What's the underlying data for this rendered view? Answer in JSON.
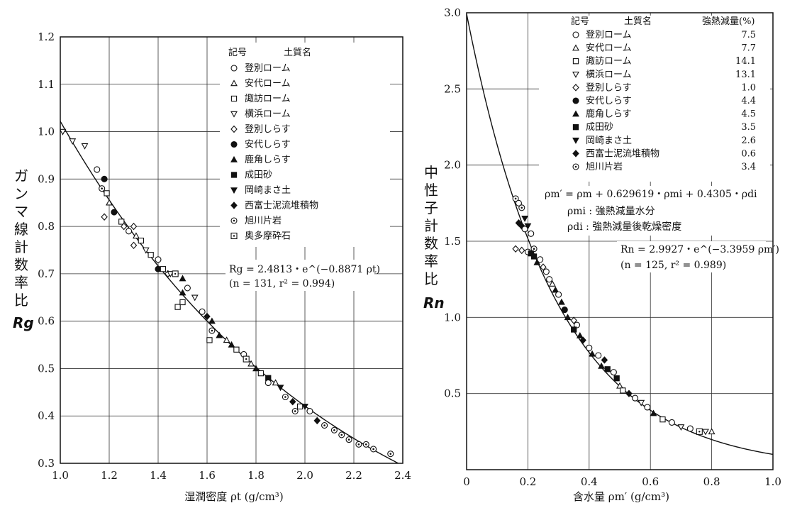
{
  "charts": [
    {
      "type": "scatter",
      "ylabel_chars": [
        "ガ",
        "ン",
        "マ",
        "線",
        "計",
        "数",
        "率",
        "比"
      ],
      "ylabel_symbol": "Rg",
      "xlabel": "湿潤密度 ρt (g/cm³)",
      "xlim": [
        1.0,
        2.4
      ],
      "ylim": [
        0.3,
        1.2
      ],
      "xticks": [
        "1.0",
        "1.2",
        "1.4",
        "1.6",
        "1.8",
        "2.0",
        "2.2",
        "2.4"
      ],
      "yticks": [
        "0.3",
        "0.4",
        "0.5",
        "0.6",
        "0.7",
        "0.8",
        "0.9",
        "1.0",
        "1.1",
        "1.2"
      ],
      "grid": true,
      "legend_position": "top-right",
      "legend_header": {
        "symbol": "記号",
        "name": "土質名"
      },
      "legend": [
        {
          "marker": "circle-open",
          "name": "登別ローム"
        },
        {
          "marker": "triangle-up-open",
          "name": "安代ローム"
        },
        {
          "marker": "square-open",
          "name": "諏訪ローム"
        },
        {
          "marker": "triangle-down-open",
          "name": "横浜ローム"
        },
        {
          "marker": "diamond-open",
          "name": "登別しらす"
        },
        {
          "marker": "circle-filled",
          "name": "安代しらす"
        },
        {
          "marker": "triangle-up-filled",
          "name": "鹿角しらす"
        },
        {
          "marker": "square-filled",
          "name": "成田砂"
        },
        {
          "marker": "triangle-down-filled",
          "name": "岡崎まさ土"
        },
        {
          "marker": "diamond-filled",
          "name": "西富士泥流堆積物"
        },
        {
          "marker": "circle-dot",
          "name": "旭川片岩"
        },
        {
          "marker": "square-dot",
          "name": "奥多摩砕石"
        }
      ],
      "equation": "Rg = 2.4813・e^(−0.8871 ρt)",
      "equation_stats": "(n = 131, r² = 0.994)",
      "fit": {
        "a": 2.4813,
        "b": -0.8871,
        "x_range": [
          0.98,
          2.4
        ]
      },
      "points": [
        {
          "x": 1.01,
          "y": 1.0,
          "m": "triangle-down-open"
        },
        {
          "x": 1.05,
          "y": 0.98,
          "m": "triangle-down-open"
        },
        {
          "x": 1.1,
          "y": 0.97,
          "m": "triangle-down-open"
        },
        {
          "x": 1.15,
          "y": 0.92,
          "m": "circle-open"
        },
        {
          "x": 1.18,
          "y": 0.9,
          "m": "circle-filled"
        },
        {
          "x": 1.17,
          "y": 0.88,
          "m": "circle-dot"
        },
        {
          "x": 1.19,
          "y": 0.87,
          "m": "square-open"
        },
        {
          "x": 1.2,
          "y": 0.85,
          "m": "triangle-up-open"
        },
        {
          "x": 1.18,
          "y": 0.82,
          "m": "diamond-open"
        },
        {
          "x": 1.22,
          "y": 0.83,
          "m": "circle-filled"
        },
        {
          "x": 1.25,
          "y": 0.81,
          "m": "square-open"
        },
        {
          "x": 1.26,
          "y": 0.8,
          "m": "diamond-open"
        },
        {
          "x": 1.28,
          "y": 0.79,
          "m": "circle-open"
        },
        {
          "x": 1.3,
          "y": 0.8,
          "m": "diamond-open"
        },
        {
          "x": 1.31,
          "y": 0.78,
          "m": "triangle-up-open"
        },
        {
          "x": 1.33,
          "y": 0.77,
          "m": "square-open"
        },
        {
          "x": 1.3,
          "y": 0.76,
          "m": "diamond-open"
        },
        {
          "x": 1.35,
          "y": 0.75,
          "m": "triangle-down-open"
        },
        {
          "x": 1.37,
          "y": 0.74,
          "m": "square-open"
        },
        {
          "x": 1.4,
          "y": 0.73,
          "m": "circle-open"
        },
        {
          "x": 1.4,
          "y": 0.71,
          "m": "circle-filled"
        },
        {
          "x": 1.42,
          "y": 0.71,
          "m": "square-open"
        },
        {
          "x": 1.44,
          "y": 0.7,
          "m": "diamond-open"
        },
        {
          "x": 1.45,
          "y": 0.7,
          "m": "triangle-down-open"
        },
        {
          "x": 1.47,
          "y": 0.7,
          "m": "square-dot"
        },
        {
          "x": 1.5,
          "y": 0.69,
          "m": "triangle-up-filled"
        },
        {
          "x": 1.5,
          "y": 0.66,
          "m": "triangle-up-filled"
        },
        {
          "x": 1.52,
          "y": 0.67,
          "m": "circle-open"
        },
        {
          "x": 1.48,
          "y": 0.63,
          "m": "square-open"
        },
        {
          "x": 1.5,
          "y": 0.64,
          "m": "square-open"
        },
        {
          "x": 1.55,
          "y": 0.65,
          "m": "triangle-down-open"
        },
        {
          "x": 1.58,
          "y": 0.62,
          "m": "circle-open"
        },
        {
          "x": 1.6,
          "y": 0.61,
          "m": "diamond-filled"
        },
        {
          "x": 1.62,
          "y": 0.6,
          "m": "triangle-up-filled"
        },
        {
          "x": 1.62,
          "y": 0.58,
          "m": "circle-dot"
        },
        {
          "x": 1.61,
          "y": 0.56,
          "m": "square-open"
        },
        {
          "x": 1.65,
          "y": 0.57,
          "m": "triangle-up-filled"
        },
        {
          "x": 1.68,
          "y": 0.56,
          "m": "triangle-up-open"
        },
        {
          "x": 1.7,
          "y": 0.55,
          "m": "triangle-up-filled"
        },
        {
          "x": 1.72,
          "y": 0.54,
          "m": "square-open"
        },
        {
          "x": 1.75,
          "y": 0.53,
          "m": "circle-open"
        },
        {
          "x": 1.76,
          "y": 0.52,
          "m": "square-dot"
        },
        {
          "x": 1.78,
          "y": 0.51,
          "m": "triangle-up-open"
        },
        {
          "x": 1.8,
          "y": 0.5,
          "m": "triangle-up-filled"
        },
        {
          "x": 1.82,
          "y": 0.49,
          "m": "square-open"
        },
        {
          "x": 1.85,
          "y": 0.48,
          "m": "square-filled"
        },
        {
          "x": 1.85,
          "y": 0.47,
          "m": "circle-open"
        },
        {
          "x": 1.88,
          "y": 0.47,
          "m": "triangle-up-open"
        },
        {
          "x": 1.9,
          "y": 0.46,
          "m": "triangle-down-filled"
        },
        {
          "x": 1.92,
          "y": 0.44,
          "m": "circle-dot"
        },
        {
          "x": 1.95,
          "y": 0.43,
          "m": "diamond-filled"
        },
        {
          "x": 1.96,
          "y": 0.41,
          "m": "circle-dot"
        },
        {
          "x": 1.98,
          "y": 0.42,
          "m": "square-open"
        },
        {
          "x": 2.0,
          "y": 0.42,
          "m": "triangle-down-filled"
        },
        {
          "x": 2.02,
          "y": 0.41,
          "m": "circle-open"
        },
        {
          "x": 2.05,
          "y": 0.39,
          "m": "diamond-filled"
        },
        {
          "x": 2.08,
          "y": 0.38,
          "m": "circle-dot"
        },
        {
          "x": 2.12,
          "y": 0.37,
          "m": "circle-dot"
        },
        {
          "x": 2.15,
          "y": 0.36,
          "m": "circle-dot"
        },
        {
          "x": 2.18,
          "y": 0.35,
          "m": "circle-dot"
        },
        {
          "x": 2.22,
          "y": 0.34,
          "m": "circle-dot"
        },
        {
          "x": 2.25,
          "y": 0.34,
          "m": "circle-dot"
        },
        {
          "x": 2.28,
          "y": 0.33,
          "m": "circle-dot"
        },
        {
          "x": 2.35,
          "y": 0.32,
          "m": "circle-dot"
        }
      ]
    },
    {
      "type": "scatter",
      "ylabel_chars": [
        "中",
        "性",
        "子",
        "計",
        "数",
        "率",
        "比"
      ],
      "ylabel_symbol": "Rn",
      "xlabel": "含水量 ρm′ (g/cm³)",
      "xlim": [
        0,
        1.0
      ],
      "ylim": [
        0,
        3.0
      ],
      "xticks": [
        "0",
        "0.2",
        "0.4",
        "0.6",
        "0.8",
        "1.0"
      ],
      "yticks": [
        "0.5",
        "1.0",
        "1.5",
        "2.0",
        "2.5",
        "3.0"
      ],
      "grid": true,
      "legend_position": "top-right",
      "legend_header": {
        "symbol": "記号",
        "name": "土質名",
        "value": "強熱減量(%)"
      },
      "legend": [
        {
          "marker": "circle-open",
          "name": "登別ローム",
          "value": "7.5"
        },
        {
          "marker": "triangle-up-open",
          "name": "安代ローム",
          "value": "7.7"
        },
        {
          "marker": "square-open",
          "name": "諏訪ローム",
          "value": "14.1"
        },
        {
          "marker": "triangle-down-open",
          "name": "横浜ローム",
          "value": "13.1"
        },
        {
          "marker": "diamond-open",
          "name": "登別しらす",
          "value": "1.0"
        },
        {
          "marker": "circle-filled",
          "name": "安代しらす",
          "value": "4.4"
        },
        {
          "marker": "triangle-up-filled",
          "name": "鹿角しらす",
          "value": "4.5"
        },
        {
          "marker": "square-filled",
          "name": "成田砂",
          "value": "3.5"
        },
        {
          "marker": "triangle-down-filled",
          "name": "岡崎まさ土",
          "value": "2.6"
        },
        {
          "marker": "diamond-filled",
          "name": "西富士泥流堆積物",
          "value": "0.6"
        },
        {
          "marker": "circle-dot",
          "name": "旭川片岩",
          "value": "3.4"
        }
      ],
      "definition_lines": [
        "ρm′ = ρm + 0.629619・ρmi + 0.4305・ρdi",
        "ρmi : 強熱減量水分",
        "ρdi : 強熱減量後乾燥密度"
      ],
      "equation": "Rn = 2.9927・e^(−3.3959 ρm′)",
      "equation_stats": "(n = 125, r² = 0.989)",
      "fit": {
        "a": 2.9927,
        "b": -3.3959,
        "x_range": [
          0.0,
          1.0
        ]
      },
      "points": [
        {
          "x": 0.16,
          "y": 1.78,
          "m": "circle-dot"
        },
        {
          "x": 0.17,
          "y": 1.75,
          "m": "circle-open"
        },
        {
          "x": 0.18,
          "y": 1.72,
          "m": "circle-dot"
        },
        {
          "x": 0.19,
          "y": 1.65,
          "m": "triangle-down-filled"
        },
        {
          "x": 0.17,
          "y": 1.62,
          "m": "diamond-filled"
        },
        {
          "x": 0.18,
          "y": 1.6,
          "m": "diamond-filled"
        },
        {
          "x": 0.2,
          "y": 1.6,
          "m": "triangle-down-filled"
        },
        {
          "x": 0.19,
          "y": 1.58,
          "m": "circle-open"
        },
        {
          "x": 0.21,
          "y": 1.55,
          "m": "circle-open"
        },
        {
          "x": 0.16,
          "y": 1.45,
          "m": "diamond-open"
        },
        {
          "x": 0.18,
          "y": 1.44,
          "m": "diamond-open"
        },
        {
          "x": 0.2,
          "y": 1.43,
          "m": "circle-open"
        },
        {
          "x": 0.22,
          "y": 1.45,
          "m": "circle-dot"
        },
        {
          "x": 0.21,
          "y": 1.42,
          "m": "square-filled"
        },
        {
          "x": 0.22,
          "y": 1.4,
          "m": "square-filled"
        },
        {
          "x": 0.24,
          "y": 1.38,
          "m": "circle-open"
        },
        {
          "x": 0.25,
          "y": 1.33,
          "m": "diamond-open"
        },
        {
          "x": 0.23,
          "y": 1.36,
          "m": "triangle-up-filled"
        },
        {
          "x": 0.26,
          "y": 1.3,
          "m": "circle-open"
        },
        {
          "x": 0.27,
          "y": 1.25,
          "m": "circle-open"
        },
        {
          "x": 0.28,
          "y": 1.22,
          "m": "triangle-up-open"
        },
        {
          "x": 0.29,
          "y": 1.18,
          "m": "triangle-up-filled"
        },
        {
          "x": 0.3,
          "y": 1.15,
          "m": "circle-open"
        },
        {
          "x": 0.31,
          "y": 1.1,
          "m": "triangle-up-filled"
        },
        {
          "x": 0.32,
          "y": 1.05,
          "m": "circle-filled"
        },
        {
          "x": 0.33,
          "y": 1.0,
          "m": "triangle-up-filled"
        },
        {
          "x": 0.35,
          "y": 0.98,
          "m": "diamond-open"
        },
        {
          "x": 0.36,
          "y": 0.95,
          "m": "circle-open"
        },
        {
          "x": 0.35,
          "y": 0.92,
          "m": "square-filled"
        },
        {
          "x": 0.37,
          "y": 0.88,
          "m": "triangle-up-filled"
        },
        {
          "x": 0.38,
          "y": 0.85,
          "m": "diamond-filled"
        },
        {
          "x": 0.4,
          "y": 0.8,
          "m": "circle-open"
        },
        {
          "x": 0.41,
          "y": 0.76,
          "m": "triangle-up-filled"
        },
        {
          "x": 0.43,
          "y": 0.75,
          "m": "circle-open"
        },
        {
          "x": 0.45,
          "y": 0.72,
          "m": "diamond-filled"
        },
        {
          "x": 0.44,
          "y": 0.68,
          "m": "triangle-up-filled"
        },
        {
          "x": 0.46,
          "y": 0.66,
          "m": "square-filled"
        },
        {
          "x": 0.48,
          "y": 0.64,
          "m": "circle-open"
        },
        {
          "x": 0.49,
          "y": 0.6,
          "m": "square-filled"
        },
        {
          "x": 0.5,
          "y": 0.55,
          "m": "triangle-up-open"
        },
        {
          "x": 0.51,
          "y": 0.52,
          "m": "square-open"
        },
        {
          "x": 0.53,
          "y": 0.5,
          "m": "diamond-filled"
        },
        {
          "x": 0.55,
          "y": 0.47,
          "m": "circle-open"
        },
        {
          "x": 0.57,
          "y": 0.44,
          "m": "triangle-down-open"
        },
        {
          "x": 0.59,
          "y": 0.41,
          "m": "circle-open"
        },
        {
          "x": 0.61,
          "y": 0.37,
          "m": "triangle-up-filled"
        },
        {
          "x": 0.64,
          "y": 0.33,
          "m": "square-open"
        },
        {
          "x": 0.67,
          "y": 0.31,
          "m": "circle-open"
        },
        {
          "x": 0.7,
          "y": 0.28,
          "m": "triangle-down-open"
        },
        {
          "x": 0.73,
          "y": 0.27,
          "m": "circle-open"
        },
        {
          "x": 0.76,
          "y": 0.25,
          "m": "square-dot"
        },
        {
          "x": 0.78,
          "y": 0.25,
          "m": "triangle-down-open"
        },
        {
          "x": 0.8,
          "y": 0.25,
          "m": "triangle-up-open"
        }
      ]
    }
  ]
}
